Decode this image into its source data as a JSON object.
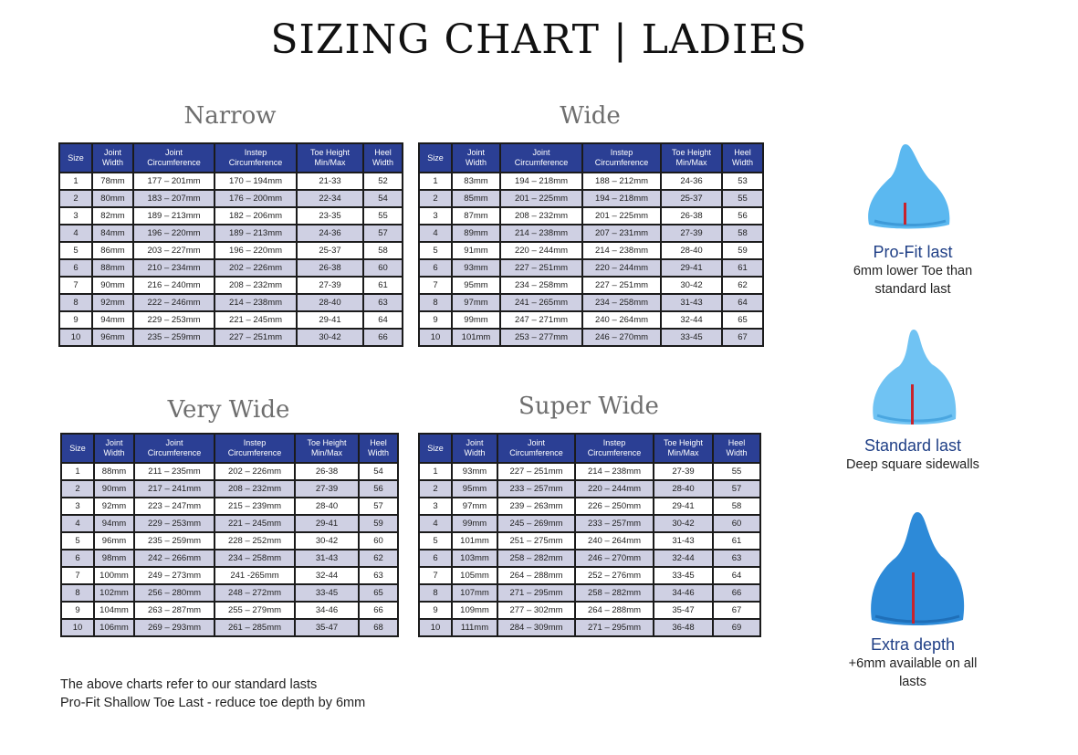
{
  "title": "SIZING CHART | LADIES",
  "headers": [
    "Size",
    "Joint\nWidth",
    "Joint\nCircumference",
    "Instep\nCircumference",
    "Toe Height\nMin/Max",
    "Heel\nWidth"
  ],
  "tables": [
    {
      "title": "Narrow",
      "rows": [
        [
          "1",
          "78mm",
          "177 – 201mm",
          "170 – 194mm",
          "21-33",
          "52"
        ],
        [
          "2",
          "80mm",
          "183 – 207mm",
          "176 – 200mm",
          "22-34",
          "54"
        ],
        [
          "3",
          "82mm",
          "189 – 213mm",
          "182 – 206mm",
          "23-35",
          "55"
        ],
        [
          "4",
          "84mm",
          "196 – 220mm",
          "189 – 213mm",
          "24-36",
          "57"
        ],
        [
          "5",
          "86mm",
          "203 – 227mm",
          "196 – 220mm",
          "25-37",
          "58"
        ],
        [
          "6",
          "88mm",
          "210 – 234mm",
          "202 – 226mm",
          "26-38",
          "60"
        ],
        [
          "7",
          "90mm",
          "216 – 240mm",
          "208 – 232mm",
          "27-39",
          "61"
        ],
        [
          "8",
          "92mm",
          "222 – 246mm",
          "214 – 238mm",
          "28-40",
          "63"
        ],
        [
          "9",
          "94mm",
          "229 – 253mm",
          "221 – 245mm",
          "29-41",
          "64"
        ],
        [
          "10",
          "96mm",
          "235 – 259mm",
          "227 – 251mm",
          "30-42",
          "66"
        ]
      ]
    },
    {
      "title": "Wide",
      "rows": [
        [
          "1",
          "83mm",
          "194 – 218mm",
          "188 – 212mm",
          "24-36",
          "53"
        ],
        [
          "2",
          "85mm",
          "201 – 225mm",
          "194 – 218mm",
          "25-37",
          "55"
        ],
        [
          "3",
          "87mm",
          "208 – 232mm",
          "201 – 225mm",
          "26-38",
          "56"
        ],
        [
          "4",
          "89mm",
          "214 – 238mm",
          "207 – 231mm",
          "27-39",
          "58"
        ],
        [
          "5",
          "91mm",
          "220 – 244mm",
          "214 – 238mm",
          "28-40",
          "59"
        ],
        [
          "6",
          "93mm",
          "227 – 251mm",
          "220 – 244mm",
          "29-41",
          "61"
        ],
        [
          "7",
          "95mm",
          "234 – 258mm",
          "227 – 251mm",
          "30-42",
          "62"
        ],
        [
          "8",
          "97mm",
          "241 – 265mm",
          "234 – 258mm",
          "31-43",
          "64"
        ],
        [
          "9",
          "99mm",
          "247 – 271mm",
          "240 – 264mm",
          "32-44",
          "65"
        ],
        [
          "10",
          "101mm",
          "253 – 277mm",
          "246 – 270mm",
          "33-45",
          "67"
        ]
      ]
    },
    {
      "title": "Very Wide",
      "rows": [
        [
          "1",
          "88mm",
          "211 – 235mm",
          "202 – 226mm",
          "26-38",
          "54"
        ],
        [
          "2",
          "90mm",
          "217 – 241mm",
          "208 – 232mm",
          "27-39",
          "56"
        ],
        [
          "3",
          "92mm",
          "223 – 247mm",
          "215 – 239mm",
          "28-40",
          "57"
        ],
        [
          "4",
          "94mm",
          "229 – 253mm",
          "221 – 245mm",
          "29-41",
          "59"
        ],
        [
          "5",
          "96mm",
          "235 – 259mm",
          "228 – 252mm",
          "30-42",
          "60"
        ],
        [
          "6",
          "98mm",
          "242 – 266mm",
          "234 – 258mm",
          "31-43",
          "62"
        ],
        [
          "7",
          "100mm",
          "249 – 273mm",
          "241 -265mm",
          "32-44",
          "63"
        ],
        [
          "8",
          "102mm",
          "256 – 280mm",
          "248 – 272mm",
          "33-45",
          "65"
        ],
        [
          "9",
          "104mm",
          "263 – 287mm",
          "255 – 279mm",
          "34-46",
          "66"
        ],
        [
          "10",
          "106mm",
          "269 – 293mm",
          "261 – 285mm",
          "35-47",
          "68"
        ]
      ]
    },
    {
      "title": "Super Wide",
      "rows": [
        [
          "1",
          "93mm",
          "227 – 251mm",
          "214 – 238mm",
          "27-39",
          "55"
        ],
        [
          "2",
          "95mm",
          "233 – 257mm",
          "220 – 244mm",
          "28-40",
          "57"
        ],
        [
          "3",
          "97mm",
          "239 – 263mm",
          "226 – 250mm",
          "29-41",
          "58"
        ],
        [
          "4",
          "99mm",
          "245 – 269mm",
          "233 – 257mm",
          "30-42",
          "60"
        ],
        [
          "5",
          "101mm",
          "251 – 275mm",
          "240 – 264mm",
          "31-43",
          "61"
        ],
        [
          "6",
          "103mm",
          "258 – 282mm",
          "246 – 270mm",
          "32-44",
          "63"
        ],
        [
          "7",
          "105mm",
          "264 – 288mm",
          "252 – 276mm",
          "33-45",
          "64"
        ],
        [
          "8",
          "107mm",
          "271 – 295mm",
          "258 – 282mm",
          "34-46",
          "66"
        ],
        [
          "9",
          "109mm",
          "277 – 302mm",
          "264 – 288mm",
          "35-47",
          "67"
        ],
        [
          "10",
          "111mm",
          "284 – 309mm",
          "271 – 295mm",
          "36-48",
          "69"
        ]
      ]
    }
  ],
  "notes": [
    "The above charts refer to our standard lasts",
    "Pro-Fit Shallow Toe Last - reduce toe depth by 6mm"
  ],
  "lasts": [
    {
      "name": "Pro-Fit last",
      "desc": [
        "6mm lower Toe than",
        "standard last"
      ],
      "color": "#5bb8f0",
      "icon": "pro-fit-last-icon"
    },
    {
      "name": "Standard last",
      "desc": [
        "Deep square sidewalls"
      ],
      "color": "#6cc0f2",
      "icon": "standard-last-icon"
    },
    {
      "name": "Extra depth",
      "desc": [
        "+6mm available on all",
        "lasts"
      ],
      "color": "#2a86d6",
      "icon": "extra-depth-last-icon"
    }
  ]
}
